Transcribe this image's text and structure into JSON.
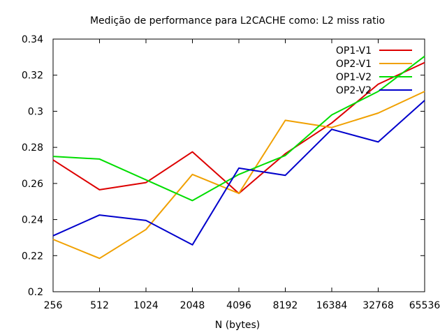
{
  "chart_data": {
    "type": "line",
    "title": "Medição de performance para L2CACHE como: L2 miss ratio",
    "xlabel": "N (bytes)",
    "ylabel": "",
    "categories": [
      "256",
      "512",
      "1024",
      "2048",
      "4096",
      "8192",
      "16384",
      "32768",
      "65536"
    ],
    "ylim": [
      0.2,
      0.34
    ],
    "yticks": [
      0.2,
      0.22,
      0.24,
      0.26,
      0.28,
      0.3,
      0.32,
      0.34
    ],
    "ytick_labels": [
      "0.2",
      "0.22",
      "0.24",
      "0.26",
      "0.28",
      "0.3",
      "0.32",
      "0.34"
    ],
    "legend_position": "top-right",
    "grid": false,
    "series": [
      {
        "name": "OP1-V1",
        "color": "#dd0000",
        "values": [
          0.273,
          0.2565,
          0.2605,
          0.2775,
          0.2545,
          0.2765,
          0.2935,
          0.315,
          0.327
        ]
      },
      {
        "name": "OP2-V1",
        "color": "#f0a000",
        "values": [
          0.229,
          0.2185,
          0.2345,
          0.265,
          0.2545,
          0.295,
          0.291,
          0.299,
          0.311
        ]
      },
      {
        "name": "OP1-V2",
        "color": "#00dd00",
        "values": [
          0.275,
          0.2735,
          0.262,
          0.2505,
          0.265,
          0.2755,
          0.298,
          0.311,
          0.3305
        ]
      },
      {
        "name": "OP2-V2",
        "color": "#0000cc",
        "values": [
          0.231,
          0.2425,
          0.2395,
          0.226,
          0.2685,
          0.2645,
          0.29,
          0.283,
          0.306
        ]
      }
    ]
  }
}
